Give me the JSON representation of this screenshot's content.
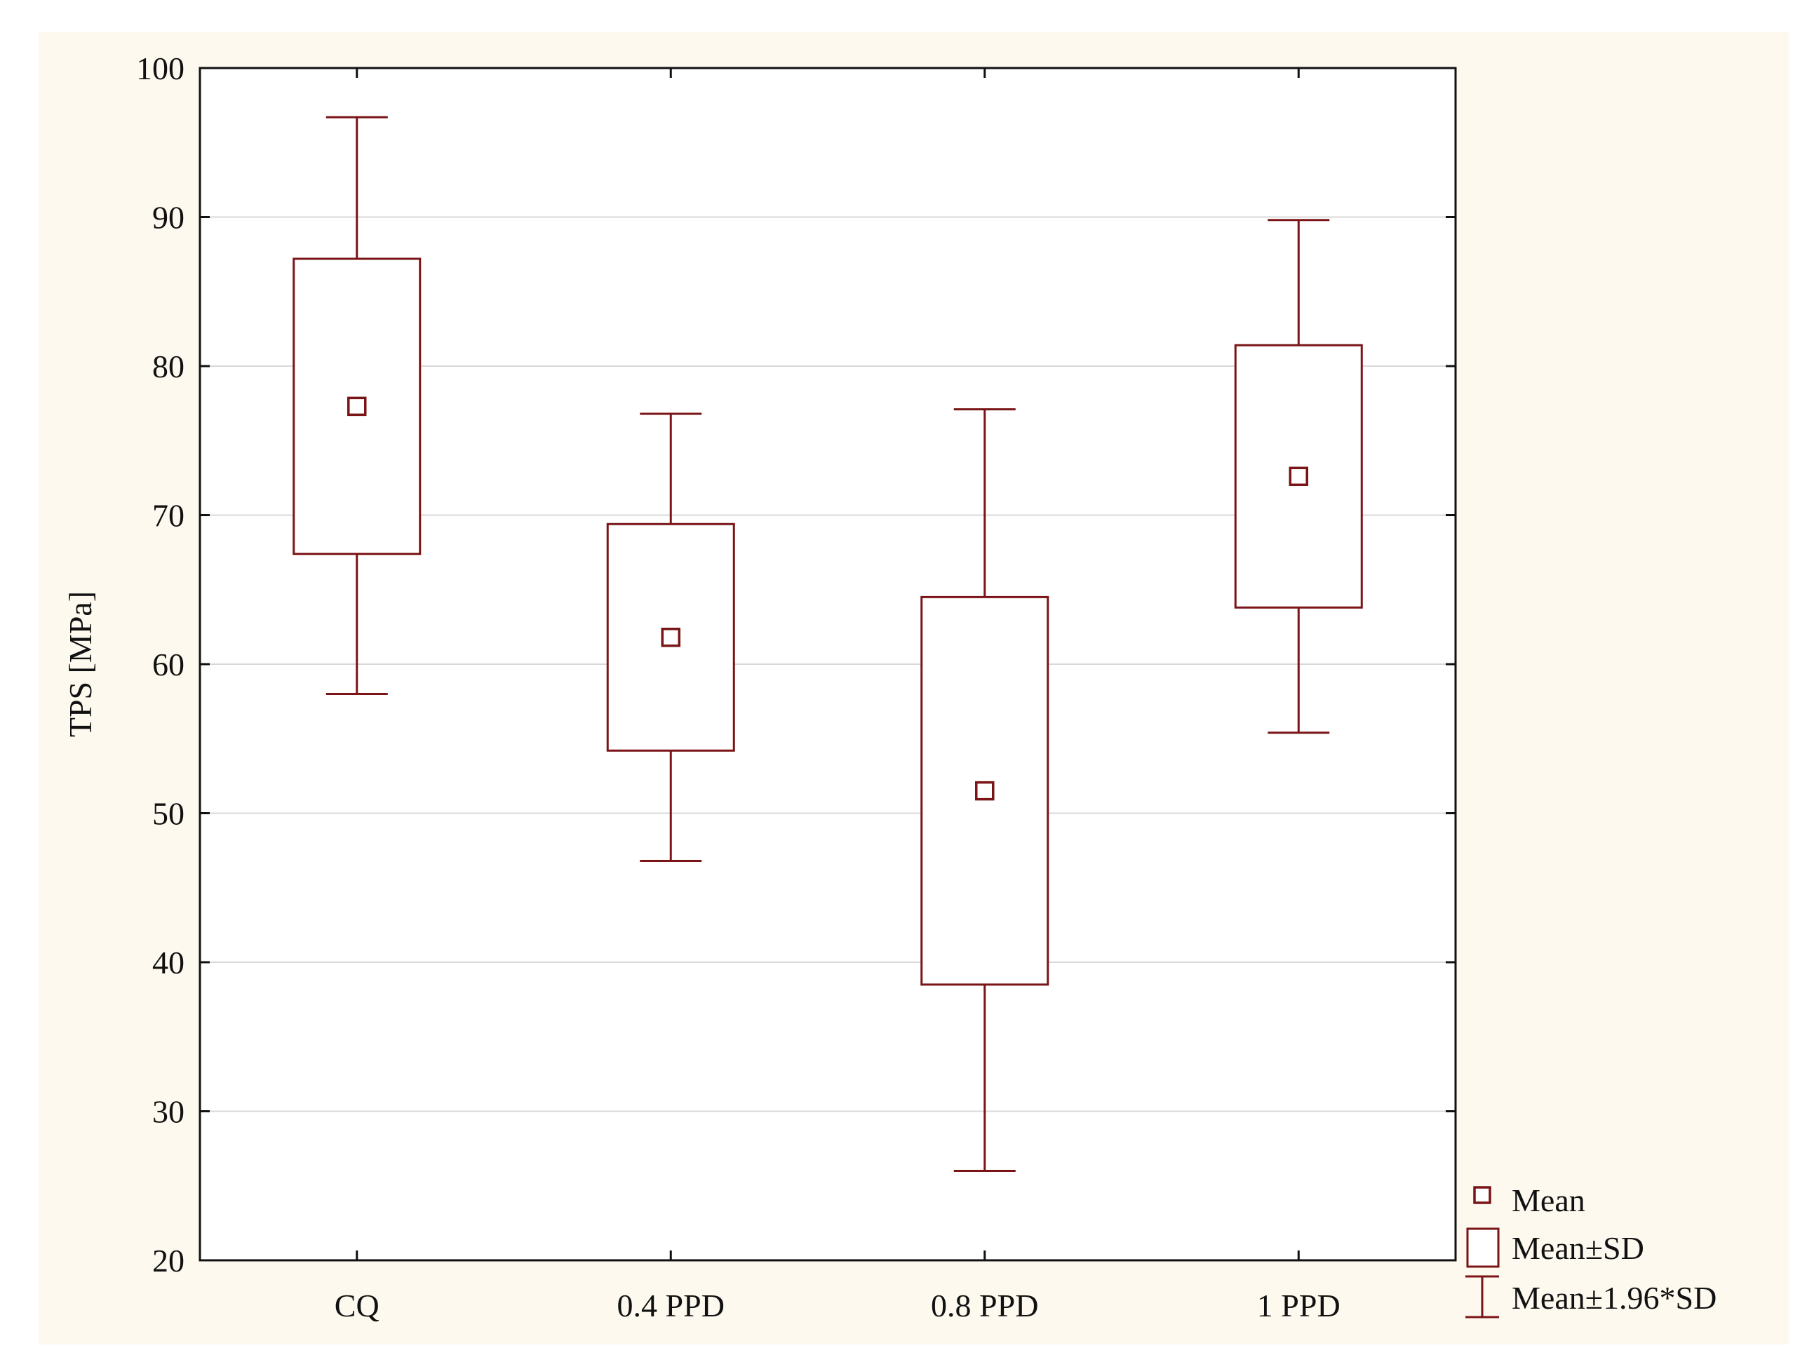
{
  "chart_data": {
    "type": "box",
    "title": "",
    "xlabel": "",
    "ylabel": "TPS [MPa]",
    "ylim": [
      20,
      100
    ],
    "yticks": [
      20,
      30,
      40,
      50,
      60,
      70,
      80,
      90,
      100
    ],
    "grid": true,
    "legend_position": "bottom-right",
    "categories": [
      "CQ",
      "0.4 PPD",
      "0.8 PPD",
      "1 PPD"
    ],
    "series": [
      {
        "name": "CQ",
        "mean": 77.3,
        "sd_low": 67.4,
        "sd_high": 87.2,
        "ci_low": 58.0,
        "ci_high": 96.7
      },
      {
        "name": "0.4 PPD",
        "mean": 61.8,
        "sd_low": 54.2,
        "sd_high": 69.4,
        "ci_low": 46.8,
        "ci_high": 76.8
      },
      {
        "name": "0.8 PPD",
        "mean": 51.5,
        "sd_low": 38.5,
        "sd_high": 64.5,
        "ci_low": 26.0,
        "ci_high": 77.1
      },
      {
        "name": "1 PPD",
        "mean": 72.6,
        "sd_low": 63.8,
        "sd_high": 81.4,
        "ci_low": 55.4,
        "ci_high": 89.8
      }
    ],
    "legend": [
      "Mean",
      "Mean±SD",
      "Mean±1.96*SD"
    ],
    "colors": {
      "accent": "#7a1416",
      "background": "#fdf9ef",
      "plot_background": "#ffffff",
      "grid": "#d8d8d8",
      "axis": "#111111"
    }
  }
}
